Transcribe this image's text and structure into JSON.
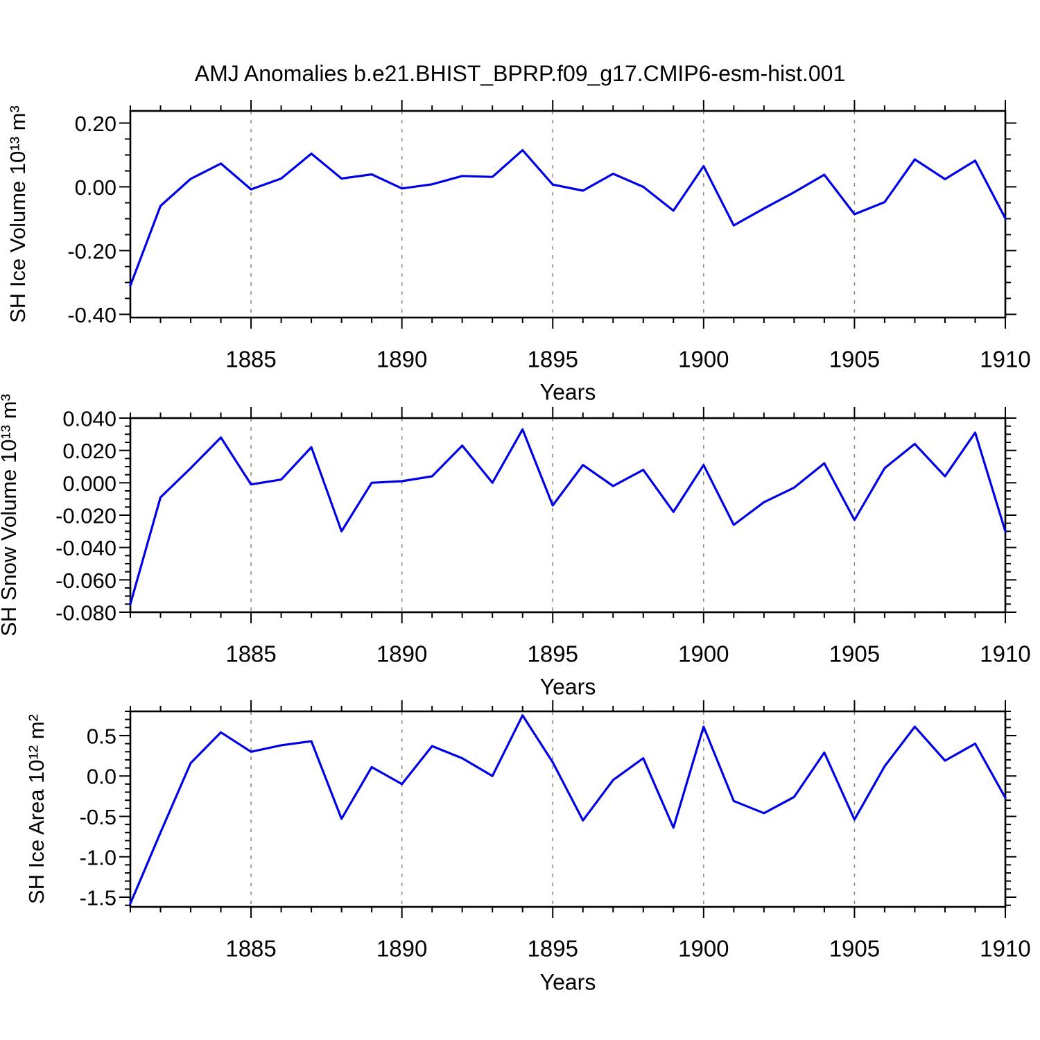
{
  "title": "AMJ Anomalies b.e21.BHIST_BPRP.f09_g17.CMIP6-esm-hist.001",
  "x_axis": {
    "label": "Years",
    "range": [
      1881,
      1910
    ],
    "minor_step": 1,
    "major_ticks": [
      1885,
      1890,
      1895,
      1900,
      1905,
      1910
    ],
    "tick_labels": [
      "1885",
      "1890",
      "1895",
      "1900",
      "1905",
      "1910"
    ],
    "grid_years": [
      1885,
      1890,
      1895,
      1900,
      1905
    ]
  },
  "style": {
    "line_color": "#0000e6",
    "grid_color": "#848484",
    "frame_color": "#000000",
    "background": "#ffffff"
  },
  "chart_data": [
    {
      "type": "line",
      "name": "sh-ice-volume",
      "ylabel": "SH Ice Volume 10¹³ m³",
      "xlabel": "Years",
      "legend": "none",
      "grid": "vertical-dashed",
      "x": [
        1881,
        1882,
        1883,
        1884,
        1885,
        1886,
        1887,
        1888,
        1889,
        1890,
        1891,
        1892,
        1893,
        1894,
        1895,
        1896,
        1897,
        1898,
        1899,
        1900,
        1901,
        1902,
        1903,
        1904,
        1905,
        1906,
        1907,
        1908,
        1909,
        1910
      ],
      "values": [
        -0.31,
        -0.06,
        0.025,
        0.073,
        -0.008,
        0.026,
        0.104,
        0.026,
        0.039,
        -0.005,
        0.008,
        0.034,
        0.031,
        0.115,
        0.007,
        -0.012,
        0.041,
        0.0,
        -0.075,
        0.065,
        -0.121,
        -0.068,
        -0.017,
        0.038,
        -0.086,
        -0.048,
        0.086,
        0.024,
        0.082,
        -0.099
      ],
      "ylim": [
        -0.41,
        0.238
      ],
      "yticks": [
        0.2,
        0.0,
        -0.2,
        -0.4
      ],
      "ytick_labels": [
        "0.20",
        "0.00",
        "-0.20",
        "-0.40"
      ],
      "y_minor_step": 0.05
    },
    {
      "type": "line",
      "name": "sh-snow-volume",
      "ylabel": "SH Snow Volume 10¹³ m³",
      "xlabel": "Years",
      "legend": "none",
      "grid": "vertical-dashed",
      "x": [
        1881,
        1882,
        1883,
        1884,
        1885,
        1886,
        1887,
        1888,
        1889,
        1890,
        1891,
        1892,
        1893,
        1894,
        1895,
        1896,
        1897,
        1898,
        1899,
        1900,
        1901,
        1902,
        1903,
        1904,
        1905,
        1906,
        1907,
        1908,
        1909,
        1910
      ],
      "values": [
        -0.075,
        -0.009,
        0.009,
        0.028,
        -0.001,
        0.002,
        0.022,
        -0.03,
        0.0,
        0.001,
        0.004,
        0.023,
        0.0,
        0.033,
        -0.014,
        0.011,
        -0.002,
        0.008,
        -0.018,
        0.011,
        -0.026,
        -0.012,
        -0.003,
        0.012,
        -0.023,
        0.009,
        0.024,
        0.004,
        0.031,
        -0.03
      ],
      "ylim": [
        -0.08,
        0.04
      ],
      "yticks": [
        0.04,
        0.02,
        0.0,
        -0.02,
        -0.04,
        -0.06,
        -0.08
      ],
      "ytick_labels": [
        "0.040",
        "0.020",
        "0.000",
        "-0.020",
        "-0.040",
        "-0.060",
        "-0.080"
      ],
      "y_minor_step": 0.005
    },
    {
      "type": "line",
      "name": "sh-ice-area",
      "ylabel": "SH Ice Area 10¹² m²",
      "xlabel": "Years",
      "legend": "none",
      "grid": "vertical-dashed",
      "x": [
        1881,
        1882,
        1883,
        1884,
        1885,
        1886,
        1887,
        1888,
        1889,
        1890,
        1891,
        1892,
        1893,
        1894,
        1895,
        1896,
        1897,
        1898,
        1899,
        1900,
        1901,
        1902,
        1903,
        1904,
        1905,
        1906,
        1907,
        1908,
        1909,
        1910
      ],
      "values": [
        -1.58,
        -0.7,
        0.16,
        0.54,
        0.3,
        0.38,
        0.43,
        -0.53,
        0.11,
        -0.1,
        0.37,
        0.22,
        0.0,
        0.75,
        0.17,
        -0.55,
        -0.05,
        0.22,
        -0.64,
        0.61,
        -0.31,
        -0.46,
        -0.26,
        0.29,
        -0.54,
        0.12,
        0.61,
        0.19,
        0.4,
        -0.27
      ],
      "ylim": [
        -1.62,
        0.8
      ],
      "yticks": [
        0.5,
        0.0,
        -0.5,
        -1.0,
        -1.5
      ],
      "ytick_labels": [
        "0.5",
        "0.0",
        "-0.5",
        "-1.0",
        "-1.5"
      ],
      "y_minor_step": 0.1
    }
  ]
}
